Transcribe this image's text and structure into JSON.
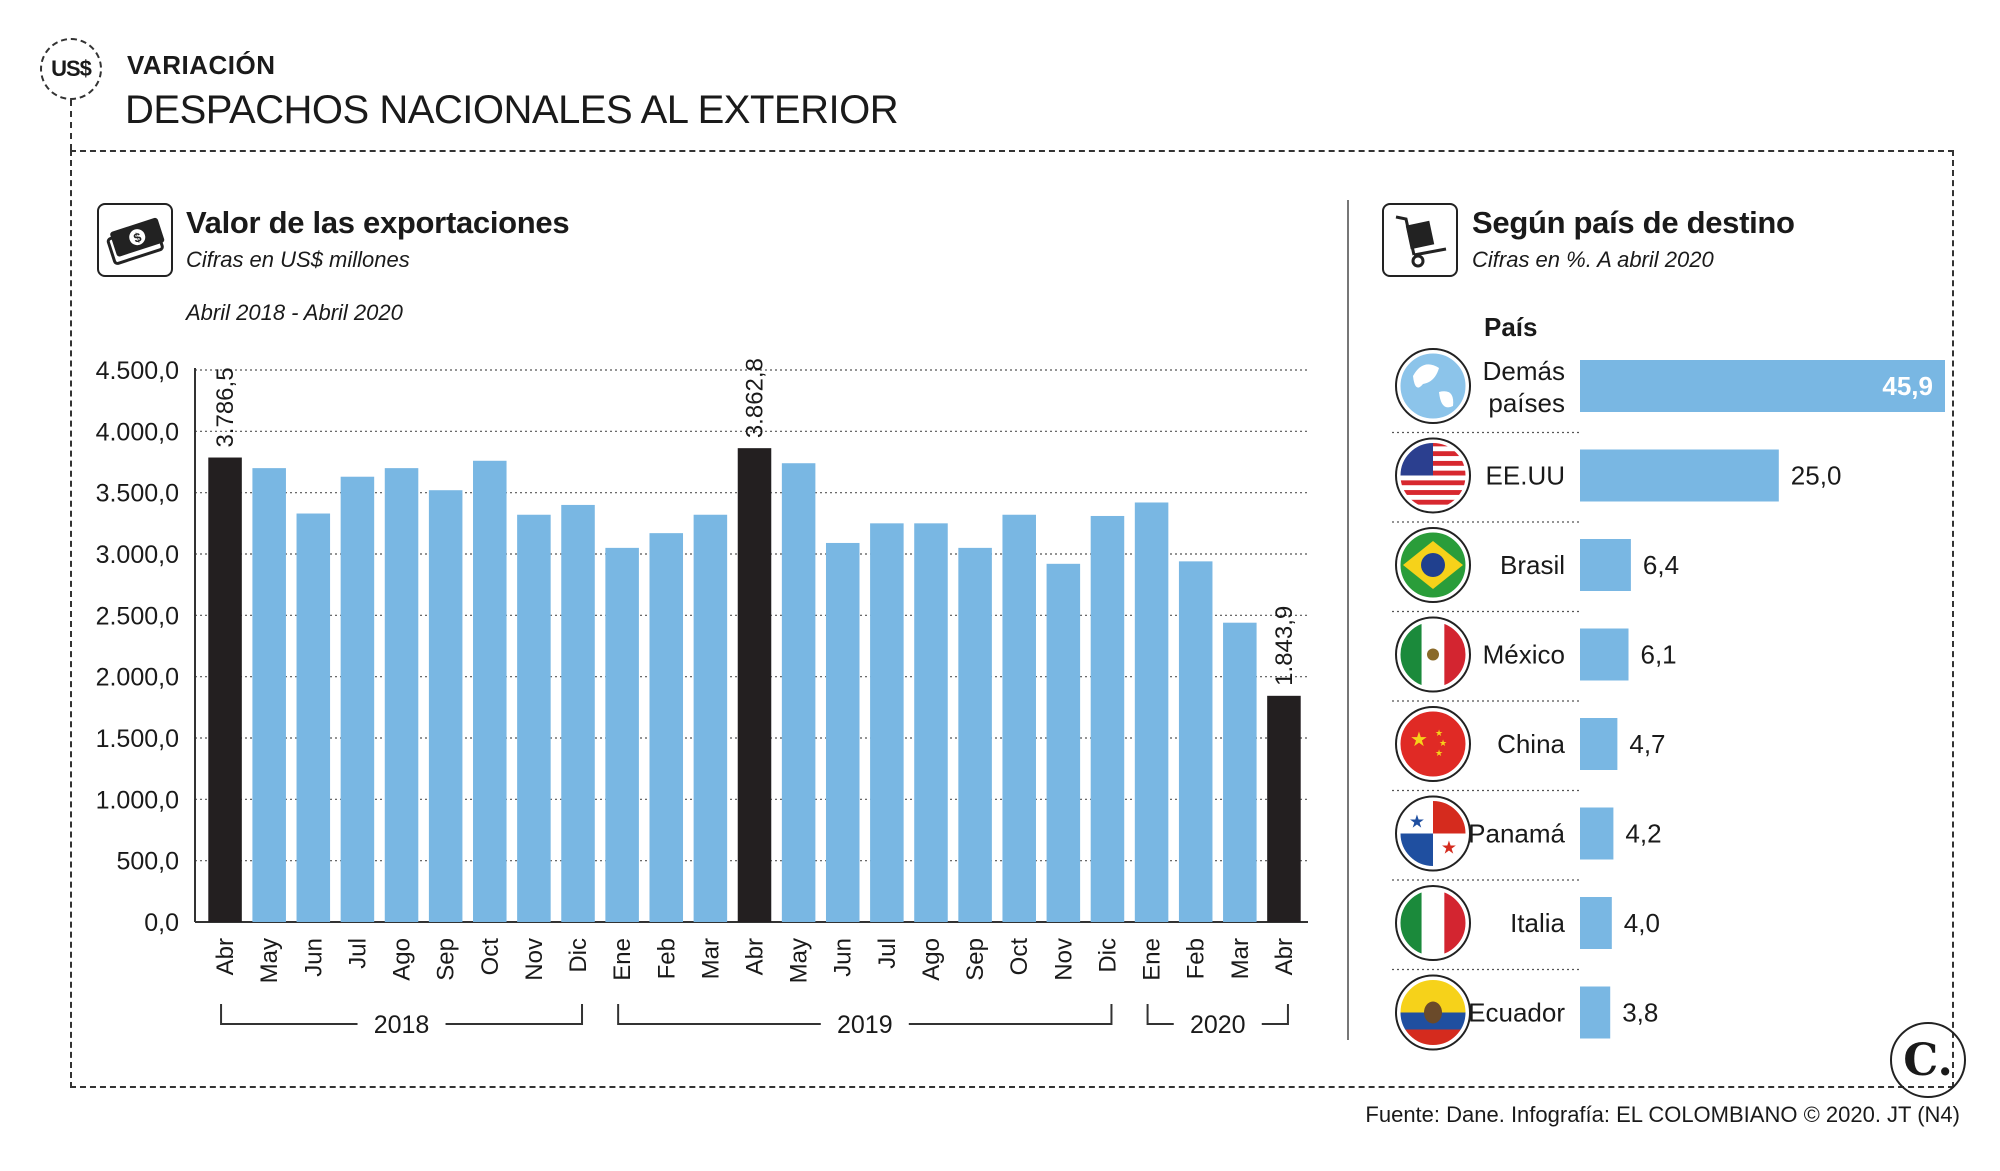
{
  "header": {
    "logo_text": "US$",
    "kicker": "VARIACIÓN",
    "title": "DESPACHOS NACIONALES AL EXTERIOR"
  },
  "left_panel": {
    "icon": "money-bill-icon",
    "title": "Valor de las exportaciones",
    "subtitle": "Cifras en US$ millones",
    "period": "Abril 2018 - Abril 2020"
  },
  "right_panel": {
    "icon": "hand-truck-box-icon",
    "title": "Según país de destino",
    "subtitle": "Cifras en %. A abril 2020",
    "column_header": "País"
  },
  "footer": {
    "source": "Fuente: Dane. Infografía: EL COLOMBIANO © 2020. JT (N4)",
    "brand": "C."
  },
  "colors": {
    "bar": "#79b7e3",
    "highlight": "#231f20",
    "grid": "#555555"
  },
  "chart_data": [
    {
      "type": "bar",
      "title": "Valor de las exportaciones",
      "subtitle": "Cifras en US$ millones",
      "ylim": [
        0,
        4500
      ],
      "yticks": [
        0,
        500,
        1000,
        1500,
        2000,
        2500,
        3000,
        3500,
        4000,
        4500
      ],
      "ytick_labels": [
        "0,0",
        "500,0",
        "1.000,0",
        "1.500,0",
        "2.000,0",
        "2.500,0",
        "3.000,0",
        "3.500,0",
        "4.000,0",
        "4.500,0"
      ],
      "grid": true,
      "categories": [
        "Abr",
        "May",
        "Jun",
        "Jul",
        "Ago",
        "Sep",
        "Oct",
        "Nov",
        "Dic",
        "Ene",
        "Feb",
        "Mar",
        "Abr",
        "May",
        "Jun",
        "Jul",
        "Ago",
        "Sep",
        "Oct",
        "Nov",
        "Dic",
        "Ene",
        "Feb",
        "Mar",
        "Abr"
      ],
      "values": [
        3786.5,
        3700,
        3330,
        3630,
        3700,
        3520,
        3760,
        3320,
        3400,
        3050,
        3170,
        3320,
        3862.8,
        3740,
        3090,
        3250,
        3250,
        3050,
        3320,
        2920,
        3310,
        3420,
        2940,
        2440,
        1843.9
      ],
      "highlighted": [
        0,
        12,
        24
      ],
      "data_labels": [
        {
          "index": 0,
          "text": "3.786,5"
        },
        {
          "index": 12,
          "text": "3.862,8"
        },
        {
          "index": 24,
          "text": "1.843,9"
        }
      ],
      "year_groups": [
        {
          "label": "2018",
          "start": 0,
          "end": 8
        },
        {
          "label": "2019",
          "start": 9,
          "end": 20
        },
        {
          "label": "2020",
          "start": 21,
          "end": 24
        }
      ]
    },
    {
      "type": "bar",
      "orientation": "horizontal",
      "title": "Según país de destino",
      "subtitle": "Cifras en %. A abril 2020",
      "categories": [
        {
          "label": "Demás países",
          "lines": [
            "Demás",
            "países"
          ],
          "flag": "globe-icon"
        },
        {
          "label": "EE.UU",
          "lines": [
            "EE.UU"
          ],
          "flag": "us-flag-icon"
        },
        {
          "label": "Brasil",
          "lines": [
            "Brasil"
          ],
          "flag": "brazil-flag-icon"
        },
        {
          "label": "México",
          "lines": [
            "México"
          ],
          "flag": "mexico-flag-icon"
        },
        {
          "label": "China",
          "lines": [
            "China"
          ],
          "flag": "china-flag-icon"
        },
        {
          "label": "Panamá",
          "lines": [
            "Panamá"
          ],
          "flag": "panama-flag-icon"
        },
        {
          "label": "Italia",
          "lines": [
            "Italia"
          ],
          "flag": "italy-flag-icon"
        },
        {
          "label": "Ecuador",
          "lines": [
            "Ecuador"
          ],
          "flag": "ecuador-flag-icon"
        }
      ],
      "values": [
        45.9,
        25.0,
        6.4,
        6.1,
        4.7,
        4.2,
        4.0,
        3.8
      ],
      "value_labels": [
        "45,9",
        "25,0",
        "6,4",
        "6,1",
        "4,7",
        "4,2",
        "4,0",
        "3,8"
      ]
    }
  ]
}
